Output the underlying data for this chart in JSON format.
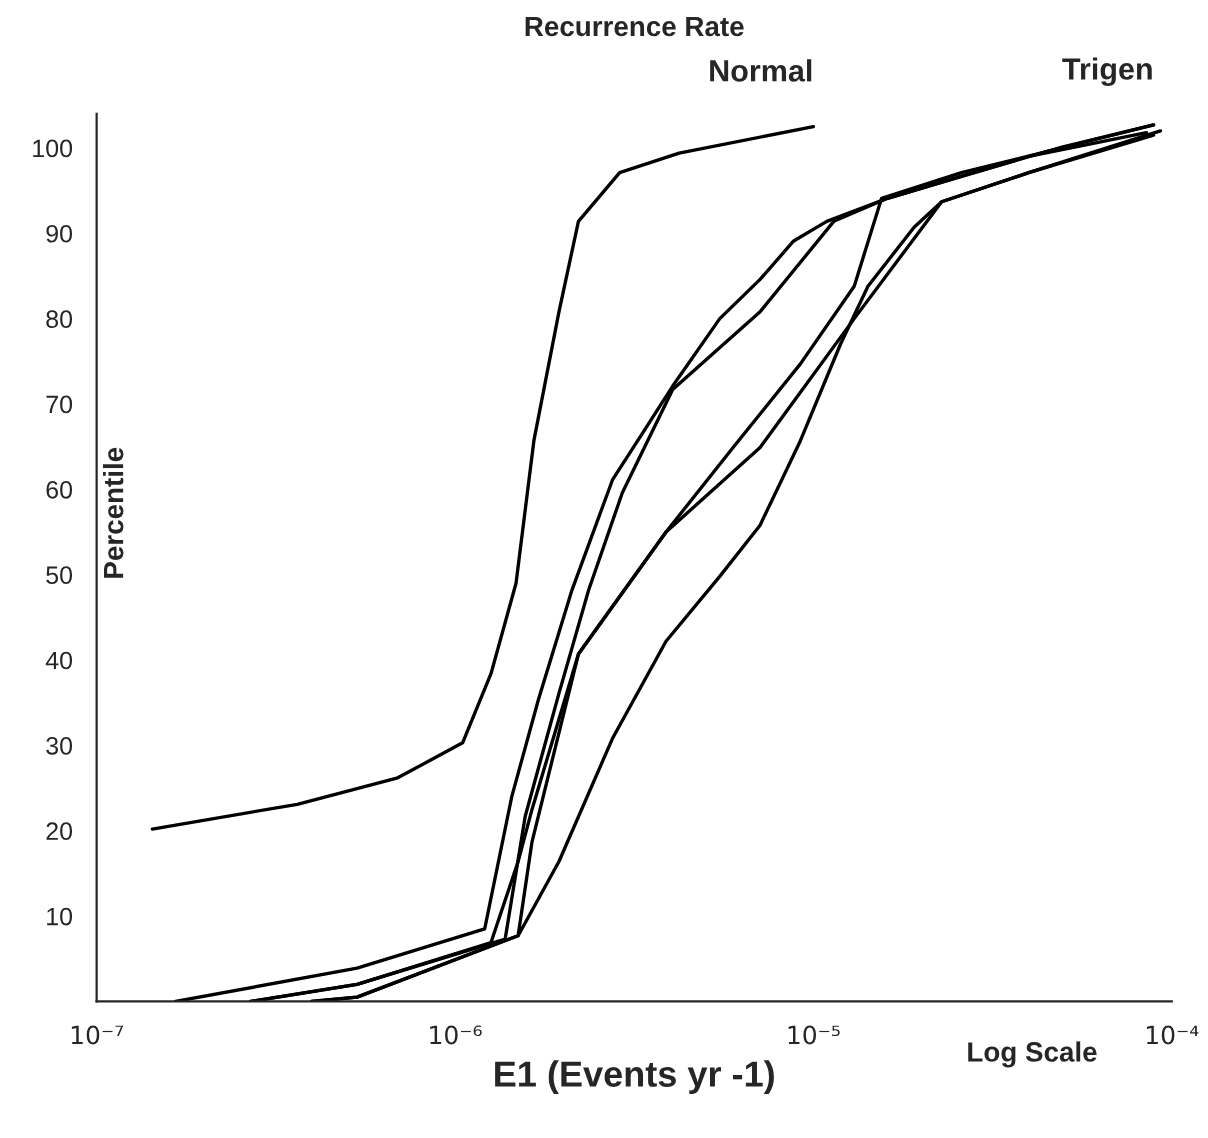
{
  "chart_data": {
    "type": "line",
    "title": "Recurrence Rate",
    "xlabel": "E1 (Events yr -1)",
    "ylabel": "Percentile",
    "annotations": [
      "Log Scale"
    ],
    "log": "x",
    "grid": false,
    "legend": false,
    "marker": "none",
    "line_style": "solid",
    "xlim": [
      1e-07,
      0.0001
    ],
    "xticks": [
      {
        "value": 1e-07,
        "label": "10⁻⁷"
      },
      {
        "value": 1e-06,
        "label": "10⁻⁶"
      },
      {
        "value": 1e-05,
        "label": "10⁻⁵"
      },
      {
        "value": 0.0001,
        "label": "10⁻⁴"
      }
    ],
    "ylim": [
      0,
      104
    ],
    "yticks": [
      10,
      20,
      30,
      40,
      50,
      60,
      70,
      80,
      90,
      100
    ],
    "series": [
      {
        "name": "Normal",
        "color": "#000000",
        "x": [
          1.43e-07,
          3.63e-07,
          6.92e-07,
          1.05e-06,
          1.26e-06,
          1.48e-06,
          1.66e-06,
          1.95e-06,
          2.21e-06,
          2.88e-06,
          4.22e-06,
          1e-05
        ],
        "values": [
          20.2,
          23.1,
          26.2,
          30.3,
          38.4,
          49,
          65.7,
          80.8,
          91.4,
          97.1,
          99.4,
          102.5
        ]
      },
      {
        "name": "Trigen",
        "color": "#000000",
        "x": [
          1.66e-07,
          5.33e-07,
          1.21e-06,
          1.44e-06,
          1.71e-06,
          2.12e-06,
          2.75e-06,
          3.41e-06,
          4.05e-06,
          5.48e-06,
          7.1e-06,
          8.81e-06,
          1.09e-05,
          1.61e-05,
          2.59e-05,
          4.94e-05,
          8.9e-05
        ],
        "values": [
          0,
          3.9,
          8.5,
          24.0,
          35.4,
          48.2,
          61.1,
          67.2,
          72.1,
          80.0,
          84.6,
          89.1,
          91.4,
          94.1,
          96.7,
          100.1,
          102.7
        ]
      },
      {
        "color": "#000000",
        "x": [
          2.69e-07,
          5.33e-07,
          1.26e-06,
          1.5e-06,
          1.64e-06,
          2.21e-06,
          3.88e-06,
          5.97e-06,
          9.2e-06,
          1.3e-05,
          1.55e-05,
          2.59e-05,
          8.9e-05
        ],
        "values": [
          0,
          2.0,
          6.9,
          16.4,
          22.5,
          40.7,
          55.0,
          64.9,
          74.7,
          83.8,
          94.1,
          97.1,
          102.7
        ]
      },
      {
        "color": "#000000",
        "x": [
          2.69e-07,
          5.33e-07,
          1.38e-06,
          1.57e-06,
          1.95e-06,
          2.36e-06,
          2.93e-06,
          4.05e-06,
          7.1e-06,
          1.14e-05,
          1.61e-05,
          3.99e-05,
          8.5e-05
        ],
        "values": [
          0,
          2.0,
          7.3,
          21.7,
          36.1,
          48.2,
          59.6,
          71.7,
          80.8,
          91.4,
          94.1,
          99.0,
          101.8
        ]
      },
      {
        "color": "#000000",
        "x": [
          3.98e-07,
          5.33e-07,
          1.5e-06,
          1.64e-06,
          2.21e-06,
          3.88e-06,
          7.1e-06,
          1.3e-05,
          2.28e-05,
          3.99e-05,
          8.9e-05
        ],
        "values": [
          0,
          0.5,
          7.7,
          18.7,
          40.7,
          55.0,
          64.9,
          80.0,
          93.7,
          97.1,
          101.5
        ]
      },
      {
        "color": "#000000",
        "x": [
          3.98e-07,
          5.33e-07,
          1.5e-06,
          1.95e-06,
          2.75e-06,
          3.88e-06,
          5.48e-06,
          7.1e-06,
          9.2e-06,
          1.19e-05,
          1.42e-05,
          1.91e-05,
          2.28e-05,
          3.99e-05,
          9.3e-05
        ],
        "values": [
          0,
          0.5,
          7.7,
          16.4,
          30.8,
          42.2,
          49.8,
          55.8,
          65.7,
          77.0,
          83.8,
          90.7,
          93.7,
          97.1,
          102.0
        ]
      }
    ]
  }
}
